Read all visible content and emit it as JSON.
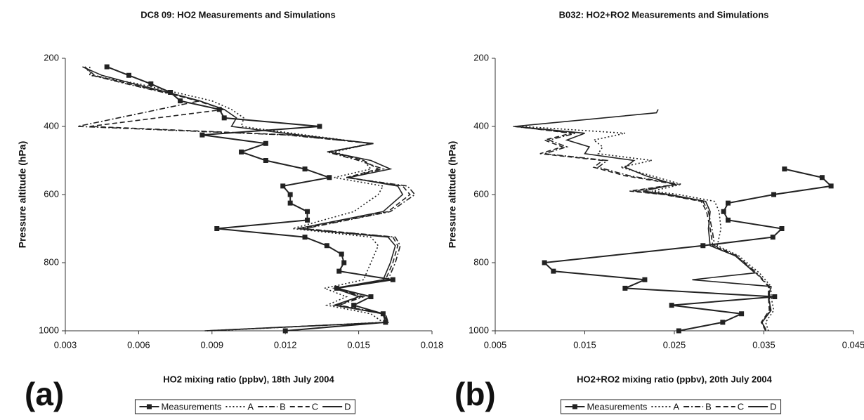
{
  "chart_data": [
    {
      "type": "line",
      "title": "DC8 09: HO2 Measurements and Simulations",
      "panel_label": "(a)",
      "x_label": "HO2 mixing ratio (ppbv), 18th July 2004",
      "y_label": "Pressure altitude (hPa)",
      "xlim": [
        0.003,
        0.018
      ],
      "xticks": [
        0.003,
        0.006,
        0.009,
        0.012,
        0.015,
        0.018
      ],
      "ylim": [
        1000,
        200
      ],
      "yticks": [
        200,
        400,
        600,
        800,
        1000
      ],
      "series": [
        {
          "name": "Measurements",
          "color": "#222222",
          "dash": "solid",
          "marker": "square",
          "x": [
            0.0047,
            0.0056,
            0.0065,
            0.0073,
            0.0077,
            0.0093,
            0.0095,
            0.0134,
            0.0086,
            0.0112,
            0.0102,
            0.0112,
            0.0128,
            0.0138,
            0.0119,
            0.0122,
            0.0122,
            0.0129,
            0.0129,
            0.0092,
            0.0128,
            0.0137,
            0.0143,
            0.0144,
            0.0142,
            0.0164,
            0.0141,
            0.0155,
            0.0148,
            0.016,
            0.0161,
            0.012
          ],
          "y": [
            225,
            250,
            275,
            300,
            325,
            350,
            375,
            400,
            425,
            450,
            475,
            500,
            525,
            550,
            575,
            600,
            625,
            650,
            675,
            700,
            725,
            750,
            775,
            800,
            825,
            850,
            875,
            900,
            925,
            950,
            975,
            1000
          ]
        },
        {
          "name": "A",
          "color": "#222222",
          "dash": "dotted",
          "marker": "none",
          "x": [
            0.004,
            0.004,
            0.006,
            0.0075,
            0.009,
            0.0098,
            0.0103,
            0.0102,
            0.0128,
            0.0155,
            0.014,
            0.0152,
            0.0155,
            0.014,
            0.016,
            0.0158,
            0.0148,
            0.0123,
            0.0155,
            0.0158,
            0.0155,
            0.0152,
            0.0136,
            0.0145,
            0.0137,
            0.0155,
            0.016,
            0.009
          ],
          "y": [
            225,
            250,
            275,
            300,
            325,
            350,
            375,
            400,
            425,
            450,
            475,
            500,
            525,
            550,
            575,
            600,
            650,
            700,
            725,
            750,
            800,
            850,
            875,
            900,
            925,
            950,
            975,
            1000
          ]
        },
        {
          "name": "B",
          "color": "#222222",
          "dash": "dashdot",
          "marker": "none",
          "x": [
            0.0038,
            0.0041,
            0.0055,
            0.007,
            0.0085,
            0.0035,
            0.012,
            0.0156,
            0.0137,
            0.015,
            0.016,
            0.0145,
            0.017,
            0.0173,
            0.0163,
            0.0128,
            0.0165,
            0.0167,
            0.0165,
            0.0162,
            0.0141,
            0.0152,
            0.0142,
            0.0161,
            0.0162,
            0.0088
          ],
          "y": [
            225,
            250,
            275,
            300,
            325,
            400,
            425,
            450,
            475,
            500,
            525,
            550,
            575,
            600,
            650,
            700,
            725,
            750,
            800,
            850,
            875,
            900,
            925,
            950,
            975,
            1000
          ]
        },
        {
          "name": "C",
          "color": "#222222",
          "dash": "dashed",
          "marker": "none",
          "x": [
            0.0038,
            0.0042,
            0.0056,
            0.0071,
            0.0084,
            0.0095,
            0.004,
            0.0122,
            0.0155,
            0.0138,
            0.0152,
            0.0158,
            0.0145,
            0.0168,
            0.0171,
            0.0162,
            0.0127,
            0.0164,
            0.0166,
            0.0164,
            0.0161,
            0.014,
            0.0151,
            0.0141,
            0.016,
            0.0162,
            0.0088
          ],
          "y": [
            225,
            250,
            275,
            300,
            325,
            350,
            400,
            425,
            450,
            475,
            500,
            525,
            550,
            575,
            600,
            650,
            700,
            725,
            750,
            800,
            850,
            875,
            900,
            925,
            950,
            975,
            1000
          ]
        },
        {
          "name": "D",
          "color": "#222222",
          "dash": "solid",
          "marker": "none",
          "x": [
            0.0037,
            0.0045,
            0.0058,
            0.0072,
            0.0085,
            0.0095,
            0.01,
            0.0098,
            0.0125,
            0.0156,
            0.0138,
            0.0155,
            0.0163,
            0.0146,
            0.0166,
            0.0168,
            0.016,
            0.0125,
            0.0162,
            0.0165,
            0.0163,
            0.016,
            0.014,
            0.015,
            0.014,
            0.016,
            0.0162,
            0.0087
          ],
          "y": [
            225,
            250,
            275,
            300,
            325,
            350,
            375,
            400,
            425,
            450,
            475,
            500,
            525,
            550,
            575,
            600,
            650,
            700,
            725,
            750,
            800,
            850,
            875,
            900,
            925,
            950,
            975,
            1000
          ]
        }
      ]
    },
    {
      "type": "line",
      "title": "B032: HO2+RO2 Measurements and Simulations",
      "panel_label": "(b)",
      "x_label": "HO2+RO2 mixing ratio (ppbv), 20th July 2004",
      "y_label": "Pressure altitude (hPa)",
      "xlim": [
        0.005,
        0.045
      ],
      "xticks": [
        0.005,
        0.015,
        0.025,
        0.035,
        0.045
      ],
      "ylim": [
        1000,
        200
      ],
      "yticks": [
        200,
        400,
        600,
        800,
        1000
      ],
      "series": [
        {
          "name": "Measurements",
          "color": "#222222",
          "dash": "solid",
          "marker": "square",
          "x": [
            0.0373,
            0.0415,
            0.0425,
            0.0361,
            0.031,
            0.0305,
            0.031,
            0.037,
            0.036,
            0.0282,
            0.0105,
            0.0115,
            0.0217,
            0.0195,
            0.0362,
            0.0247,
            0.0325,
            0.0304,
            0.0255
          ],
          "y": [
            525,
            550,
            575,
            600,
            625,
            650,
            675,
            700,
            725,
            750,
            800,
            825,
            850,
            875,
            900,
            925,
            950,
            975,
            1000
          ]
        },
        {
          "name": "A",
          "color": "#222222",
          "dash": "dotted",
          "marker": "none",
          "x": [
            0.008,
            0.0195,
            0.016,
            0.017,
            0.0165,
            0.0225,
            0.019,
            0.0225,
            0.0258,
            0.0225,
            0.0255,
            0.0295,
            0.03,
            0.0302,
            0.0298,
            0.0322,
            0.0345,
            0.0358,
            0.0358,
            0.0361,
            0.0352,
            0.0355
          ],
          "y": [
            400,
            420,
            440,
            460,
            480,
            500,
            520,
            545,
            570,
            590,
            600,
            620,
            650,
            700,
            750,
            780,
            830,
            870,
            900,
            940,
            975,
            1000
          ]
        },
        {
          "name": "B",
          "color": "#222222",
          "dash": "dashdot",
          "marker": "none",
          "x": [
            0.007,
            0.014,
            0.011,
            0.013,
            0.0105,
            0.0175,
            0.0165,
            0.02,
            0.0255,
            0.0205,
            0.024,
            0.0282,
            0.0288,
            0.0292,
            0.0295,
            0.032,
            0.0342,
            0.0356,
            0.0356,
            0.0357,
            0.0348,
            0.0353
          ],
          "y": [
            400,
            420,
            440,
            460,
            480,
            500,
            520,
            545,
            570,
            590,
            600,
            620,
            650,
            700,
            750,
            780,
            830,
            870,
            900,
            940,
            975,
            1000
          ]
        },
        {
          "name": "C",
          "color": "#222222",
          "dash": "dashed",
          "marker": "none",
          "x": [
            0.0072,
            0.0135,
            0.0105,
            0.0125,
            0.01,
            0.017,
            0.016,
            0.0195,
            0.0252,
            0.02,
            0.0238,
            0.028,
            0.0286,
            0.029,
            0.0293,
            0.0319,
            0.0341,
            0.0355,
            0.0355,
            0.0356,
            0.0347,
            0.0352
          ],
          "y": [
            400,
            420,
            440,
            460,
            480,
            500,
            520,
            545,
            570,
            590,
            600,
            620,
            650,
            700,
            750,
            780,
            830,
            870,
            900,
            940,
            975,
            1000
          ]
        },
        {
          "name": "D",
          "color": "#222222",
          "dash": "solid",
          "marker": "none",
          "x": [
            0.0232,
            0.023,
            0.0072,
            0.015,
            0.013,
            0.0155,
            0.015,
            0.0205,
            0.0195,
            0.0218,
            0.025,
            0.0215,
            0.0245,
            0.0285,
            0.029,
            0.0288,
            0.029,
            0.0318,
            0.034,
            0.027,
            0.0358,
            0.0355,
            0.0358,
            0.0348,
            0.0352
          ],
          "y": [
            350,
            360,
            400,
            420,
            440,
            460,
            480,
            500,
            520,
            545,
            570,
            590,
            600,
            620,
            650,
            700,
            750,
            780,
            830,
            850,
            870,
            900,
            940,
            975,
            1000
          ]
        }
      ]
    }
  ]
}
